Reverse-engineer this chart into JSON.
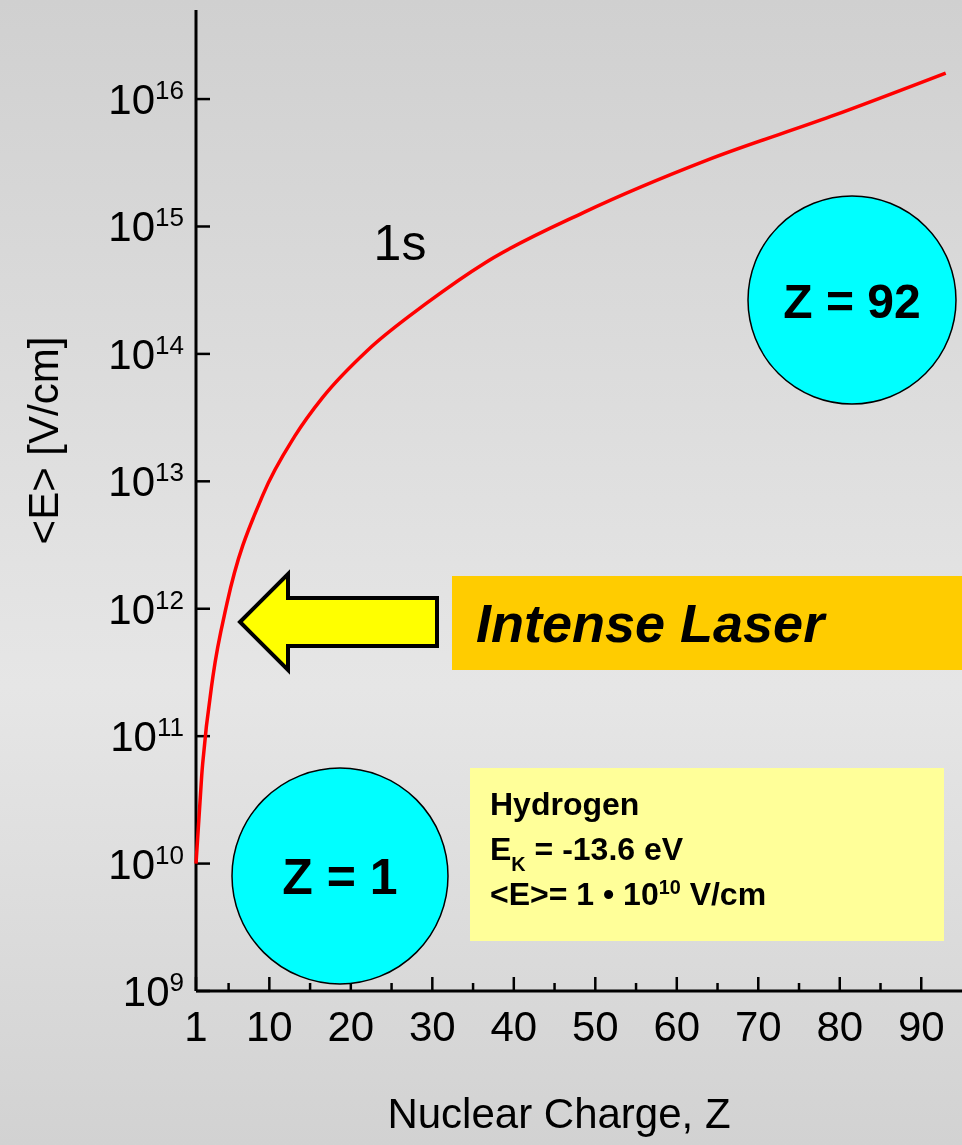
{
  "chart_data": {
    "type": "line",
    "xlabel": "Nuclear Charge, Z",
    "ylabel": "<E>  [V/cm]",
    "log": "y",
    "grid": false,
    "marker": "none",
    "line_style": "solid",
    "xlim": [
      1,
      95
    ],
    "ylim": [
      1000000000.0,
      5e+16
    ],
    "xticks": [
      1,
      {
        "value": 5,
        "label": null
      },
      10,
      {
        "value": 15,
        "label": null
      },
      20,
      {
        "value": 25,
        "label": null
      },
      30,
      {
        "value": 35,
        "label": null
      },
      40,
      {
        "value": 45,
        "label": null
      },
      50,
      {
        "value": 55,
        "label": null
      },
      60,
      {
        "value": 65,
        "label": null
      },
      70,
      {
        "value": 75,
        "label": null
      },
      80,
      {
        "value": 85,
        "label": null
      },
      90
    ],
    "yticks": [
      {
        "value": 1000000000.0,
        "label": "10$^{9}$"
      },
      {
        "value": 10000000000.0,
        "label": "10$^{10}$"
      },
      {
        "value": 100000000000.0,
        "label": "10$^{11}$"
      },
      {
        "value": 1000000000000.0,
        "label": "10$^{12}$"
      },
      {
        "value": 10000000000000.0,
        "label": "10$^{13}$"
      },
      {
        "value": 100000000000000.0,
        "label": "10$^{14}$"
      },
      {
        "value": 1000000000000000.0,
        "label": "10$^{15}$"
      },
      {
        "value": 1e+16,
        "label": "10$^{16}$"
      }
    ],
    "series": [
      {
        "color": "#ff0000",
        "x": [
          1,
          1.7,
          3.1,
          4.8,
          9.2,
          13.1,
          16.6,
          22,
          29.3,
          36.5,
          48.6,
          63.8,
          78.9,
          93
        ],
        "values": [
          10000000000.0,
          49000000000.0,
          300000000000.0,
          1100000000000.0,
          7800000000000.0,
          22500000000000.0,
          46000000000000.0,
          106000000000000.0,
          250000000000000.0,
          520000000000000.0,
          1290000000000000.0,
          3330000000000000.0,
          7300000000000000.0,
          1.6e+16
        ]
      }
    ],
    "annotations": [
      "1s",
      "Z = 1",
      "Z = 92",
      "Intense Laser",
      "Hydrogen",
      "E$_{K}$  = -13.6 eV",
      "<E>= 1 • 10$^{10}$ V/cm"
    ]
  }
}
